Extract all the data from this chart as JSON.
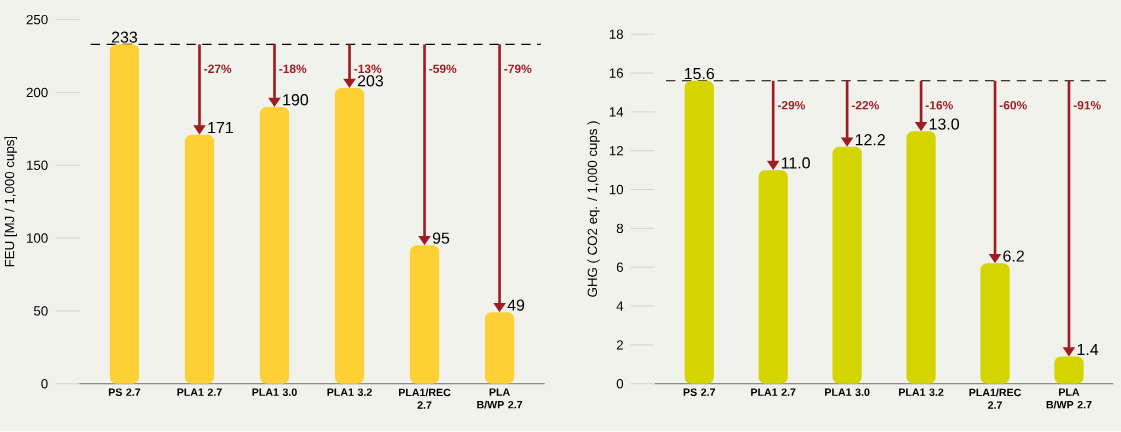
{
  "chart_data": [
    {
      "type": "bar",
      "ylabel": "FEU [MJ / 1,000 cups]",
      "categories": [
        "PS 2.7",
        "PLA1 2.7",
        "PLA1 3.0",
        "PLA1 3.2",
        "PLA1/REC 2.7",
        "PLA B/WP 2.7"
      ],
      "values": [
        233,
        171,
        190,
        203,
        95,
        49
      ],
      "color": "#fdd035",
      "data_labels": true,
      "ylim": [
        0,
        250
      ],
      "yticks": [
        0,
        50,
        100,
        150,
        200,
        250
      ],
      "ref_lines": [
        {
          "axis": "y",
          "value": 233,
          "color": "#000000",
          "line_style": "dashed"
        }
      ],
      "annotations": [
        "-27%",
        "-18%",
        "-13%",
        "-59%",
        "-79%"
      ]
    },
    {
      "type": "bar",
      "ylabel": "GHG ( CO2 eq. / 1,000 cups )",
      "categories": [
        "PS 2.7",
        "PLA1 2.7",
        "PLA1 3.0",
        "PLA1 3.2",
        "PLA1/REC 2.7",
        "PLA B/WP 2.7"
      ],
      "values": [
        15.6,
        11.0,
        12.2,
        13.0,
        6.2,
        1.4
      ],
      "color": "#d4d400",
      "value_labels": [
        "15.6",
        "11.0",
        "12.2",
        "13.0",
        "6.2",
        "1.4"
      ],
      "ylim": [
        0,
        18
      ],
      "yticks": [
        0,
        2,
        4,
        6,
        8,
        10,
        12,
        14,
        16,
        18
      ],
      "ref_lines": [
        {
          "axis": "y",
          "value": 15.6,
          "color": "#000000",
          "line_style": "dashed"
        }
      ],
      "annotations": [
        "-29%",
        "-22%",
        "-16%",
        "-60%",
        "-91%"
      ]
    }
  ]
}
